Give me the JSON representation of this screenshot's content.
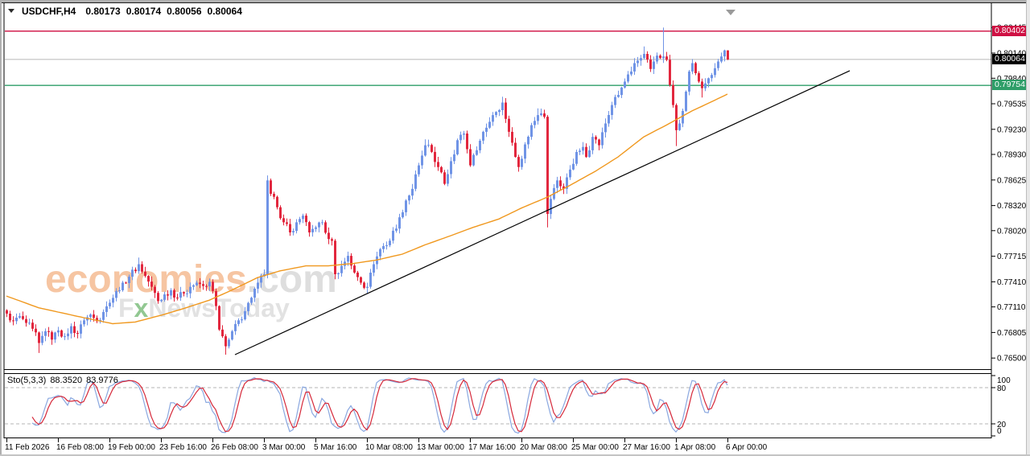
{
  "window": {
    "symbol_timeframe": "USDCHF,H4",
    "quote_open": "0.80173",
    "quote_high": "0.80174",
    "quote_low": "0.80056",
    "quote_close": "0.80064"
  },
  "watermark": {
    "brand": "economies",
    "brand_suffix": ".com",
    "line2_f": "F",
    "line2_x": "x",
    "line2_rest": "NewsToday"
  },
  "indicator_panel": {
    "name": "Sto(5,3,3)",
    "value_k": "88.3520",
    "value_d": "83.9776",
    "levels": [
      "100",
      "80",
      "20",
      "0"
    ]
  },
  "price_axis": {
    "labels": [
      "0.80445",
      "0.80140",
      "0.79840",
      "0.79535",
      "0.79230",
      "0.78930",
      "0.78625",
      "0.78320",
      "0.78020",
      "0.77715",
      "0.77410",
      "0.77110",
      "0.76805",
      "0.76500"
    ],
    "badges": [
      {
        "label": "0.80402",
        "price": 0.80402,
        "color": "#cf1043",
        "role": "resistance-line-price"
      },
      {
        "label": "0.80064",
        "price": 0.80064,
        "color": "#000000",
        "role": "current-bid-price"
      },
      {
        "label": "0.79754",
        "price": 0.79754,
        "color": "#2e9e68",
        "role": "support-line-price"
      }
    ]
  },
  "time_axis": {
    "labels": [
      "11 Feb 2026",
      "16 Feb 08:00",
      "19 Feb 00:00",
      "23 Feb 16:00",
      "26 Feb 08:00",
      "3 Mar 00:00",
      "5 Mar 16:00",
      "10 Mar 08:00",
      "13 Mar 00:00",
      "17 Mar 16:00",
      "20 Mar 08:00",
      "25 Mar 00:00",
      "27 Mar 16:00",
      "1 Apr 08:00",
      "6 Apr 00:00"
    ]
  },
  "colors": {
    "up_candle": "#7094e6",
    "down_candle": "#e2273e",
    "ma": "#f0981e",
    "trendline": "#000000",
    "resistance": "#cf1043",
    "support": "#2e9e68",
    "current_price_line": "#b8b8b8",
    "sto_k": "#8aa8e0",
    "sto_d": "#d6293a",
    "sto_level": "#b4b4b4"
  },
  "chart_data": {
    "type": "candlestick",
    "symbol": "USDCHF",
    "timeframe": "H4",
    "current_candle": {
      "open": 0.80173,
      "high": 0.80174,
      "low": 0.80056,
      "close": 0.80064
    },
    "ylim": [
      0.7635,
      0.8052
    ],
    "y_ticks": [
      0.80445,
      0.8014,
      0.7984,
      0.79535,
      0.7923,
      0.7893,
      0.78625,
      0.7832,
      0.7802,
      0.77715,
      0.7741,
      0.7711,
      0.76805,
      0.765
    ],
    "x_tick_labels": [
      "11 Feb 2026",
      "16 Feb 08:00",
      "19 Feb 00:00",
      "23 Feb 16:00",
      "26 Feb 08:00",
      "3 Mar 00:00",
      "5 Mar 16:00",
      "10 Mar 08:00",
      "13 Mar 00:00",
      "17 Mar 16:00",
      "20 Mar 08:00",
      "25 Mar 00:00",
      "27 Mar 16:00",
      "1 Apr 08:00",
      "6 Apr 00:00"
    ],
    "candles_per_x_tick": 16,
    "candle_count": 225,
    "grid": false,
    "horizontal_lines": [
      {
        "price": 0.80402,
        "color": "#cf1043",
        "width": 1.3,
        "role": "resistance"
      },
      {
        "price": 0.79754,
        "color": "#2e9e68",
        "width": 1.3,
        "role": "support"
      },
      {
        "price": 0.80064,
        "color": "#b8b8b8",
        "width": 1,
        "role": "current-price"
      }
    ],
    "trendline": {
      "color": "#000000",
      "points": [
        {
          "index": 71,
          "price": 0.7654
        },
        {
          "index": 262,
          "price": 0.7993
        }
      ]
    },
    "close_path": [
      [
        0,
        0.7703
      ],
      [
        2,
        0.7694
      ],
      [
        4,
        0.77
      ],
      [
        6,
        0.7692
      ],
      [
        8,
        0.7685
      ],
      [
        10,
        0.7668
      ],
      [
        12,
        0.7682
      ],
      [
        14,
        0.7672
      ],
      [
        16,
        0.7683
      ],
      [
        18,
        0.7676
      ],
      [
        20,
        0.7688
      ],
      [
        22,
        0.7679
      ],
      [
        24,
        0.7695
      ],
      [
        26,
        0.7702
      ],
      [
        28,
        0.7694
      ],
      [
        30,
        0.7705
      ],
      [
        32,
        0.7716
      ],
      [
        34,
        0.773
      ],
      [
        36,
        0.774
      ],
      [
        38,
        0.7747
      ],
      [
        41,
        0.7762
      ],
      [
        43,
        0.7748
      ],
      [
        45,
        0.7735
      ],
      [
        47,
        0.7718
      ],
      [
        49,
        0.7726
      ],
      [
        51,
        0.7731
      ],
      [
        53,
        0.7722
      ],
      [
        55,
        0.7727
      ],
      [
        57,
        0.7735
      ],
      [
        59,
        0.774
      ],
      [
        61,
        0.7736
      ],
      [
        63,
        0.7741
      ],
      [
        64,
        0.773
      ],
      [
        65,
        0.7712
      ],
      [
        66,
        0.7684
      ],
      [
        67,
        0.7676
      ],
      [
        68,
        0.7664
      ],
      [
        69,
        0.7672
      ],
      [
        70,
        0.7682
      ],
      [
        72,
        0.7695
      ],
      [
        74,
        0.7706
      ],
      [
        76,
        0.7722
      ],
      [
        78,
        0.774
      ],
      [
        80,
        0.775
      ],
      [
        81,
        0.7862
      ],
      [
        82,
        0.7846
      ],
      [
        84,
        0.783
      ],
      [
        86,
        0.7812
      ],
      [
        88,
        0.78
      ],
      [
        90,
        0.7812
      ],
      [
        92,
        0.782
      ],
      [
        94,
        0.78
      ],
      [
        96,
        0.7806
      ],
      [
        98,
        0.7812
      ],
      [
        100,
        0.7792
      ],
      [
        101,
        0.779
      ],
      [
        102,
        0.775
      ],
      [
        104,
        0.776
      ],
      [
        106,
        0.7772
      ],
      [
        108,
        0.7752
      ],
      [
        110,
        0.774
      ],
      [
        112,
        0.7735
      ],
      [
        114,
        0.7762
      ],
      [
        116,
        0.778
      ],
      [
        119,
        0.779
      ],
      [
        122,
        0.7818
      ],
      [
        124,
        0.7838
      ],
      [
        126,
        0.7852
      ],
      [
        128,
        0.788
      ],
      [
        130,
        0.7904
      ],
      [
        132,
        0.7896
      ],
      [
        134,
        0.7878
      ],
      [
        136,
        0.7858
      ],
      [
        138,
        0.7885
      ],
      [
        140,
        0.791
      ],
      [
        142,
        0.7918
      ],
      [
        144,
        0.788
      ],
      [
        146,
        0.7898
      ],
      [
        148,
        0.792
      ],
      [
        151,
        0.794
      ],
      [
        154,
        0.7955
      ],
      [
        156,
        0.792
      ],
      [
        158,
        0.789
      ],
      [
        159,
        0.7878
      ],
      [
        161,
        0.7905
      ],
      [
        163,
        0.7928
      ],
      [
        165,
        0.794
      ],
      [
        166,
        0.7942
      ],
      [
        167,
        0.7938
      ],
      [
        168,
        0.7822
      ],
      [
        169,
        0.784
      ],
      [
        171,
        0.7862
      ],
      [
        173,
        0.7852
      ],
      [
        175,
        0.7875
      ],
      [
        177,
        0.7896
      ],
      [
        179,
        0.7902
      ],
      [
        180,
        0.789
      ],
      [
        182,
        0.7914
      ],
      [
        184,
        0.7904
      ],
      [
        186,
        0.793
      ],
      [
        188,
        0.7952
      ],
      [
        190,
        0.7964
      ],
      [
        192,
        0.798
      ],
      [
        194,
        0.7992
      ],
      [
        196,
        0.8005
      ],
      [
        198,
        0.8013
      ],
      [
        200,
        0.7995
      ],
      [
        202,
        0.8011
      ],
      [
        204,
        0.801
      ],
      [
        205,
        0.8006
      ],
      [
        206,
        0.7976
      ],
      [
        207,
        0.7952
      ],
      [
        208,
        0.7922
      ],
      [
        209,
        0.793
      ],
      [
        210,
        0.7945
      ],
      [
        211,
        0.7968
      ],
      [
        212,
        0.7992
      ],
      [
        213,
        0.8002
      ],
      [
        214,
        0.799
      ],
      [
        215,
        0.798
      ],
      [
        216,
        0.7972
      ],
      [
        218,
        0.7984
      ],
      [
        220,
        0.7996
      ],
      [
        221,
        0.8004
      ],
      [
        222,
        0.801
      ],
      [
        223,
        0.80173
      ],
      [
        224,
        0.80064
      ]
    ],
    "wick_overrides": {
      "10": {
        "low": 0.7656
      },
      "41": {
        "high": 0.777
      },
      "68": {
        "low": 0.7654
      },
      "81": {
        "high": 0.7868
      },
      "102": {
        "low": 0.7744
      },
      "112": {
        "low": 0.7727
      },
      "130": {
        "high": 0.7911
      },
      "154": {
        "high": 0.7962
      },
      "165": {
        "high": 0.7948
      },
      "168": {
        "low": 0.7806
      },
      "198": {
        "high": 0.8022
      },
      "204": {
        "high": 0.80445
      },
      "208": {
        "low": 0.7903
      },
      "216": {
        "low": 0.7961
      },
      "223": {
        "high": 0.8018
      },
      "224": {
        "high": 0.80174,
        "low": 0.80056
      }
    },
    "ma_line": {
      "name": "moving-average",
      "color": "#f0981e",
      "points": [
        [
          0,
          0.7724
        ],
        [
          10,
          0.771
        ],
        [
          23,
          0.7699
        ],
        [
          33,
          0.7691
        ],
        [
          40,
          0.7693
        ],
        [
          48,
          0.7701
        ],
        [
          55,
          0.7709
        ],
        [
          63,
          0.7719
        ],
        [
          70,
          0.7731
        ],
        [
          78,
          0.7746
        ],
        [
          85,
          0.7754
        ],
        [
          93,
          0.776
        ],
        [
          100,
          0.776
        ],
        [
          108,
          0.7763
        ],
        [
          115,
          0.7767
        ],
        [
          123,
          0.7774
        ],
        [
          130,
          0.7785
        ],
        [
          138,
          0.7796
        ],
        [
          145,
          0.7806
        ],
        [
          153,
          0.7816
        ],
        [
          160,
          0.7829
        ],
        [
          168,
          0.7842
        ],
        [
          175,
          0.7856
        ],
        [
          183,
          0.7873
        ],
        [
          190,
          0.789
        ],
        [
          198,
          0.7914
        ],
        [
          205,
          0.7928
        ],
        [
          213,
          0.7945
        ],
        [
          218,
          0.7954
        ],
        [
          224,
          0.7965
        ]
      ]
    },
    "stochastic": {
      "name": "Sto(5,3,3)",
      "k_period": 5,
      "k_slowing": 3,
      "d_period": 3,
      "last_k": 88.352,
      "last_d": 83.9776,
      "levels": [
        80,
        20
      ],
      "range": [
        0,
        100
      ]
    }
  }
}
